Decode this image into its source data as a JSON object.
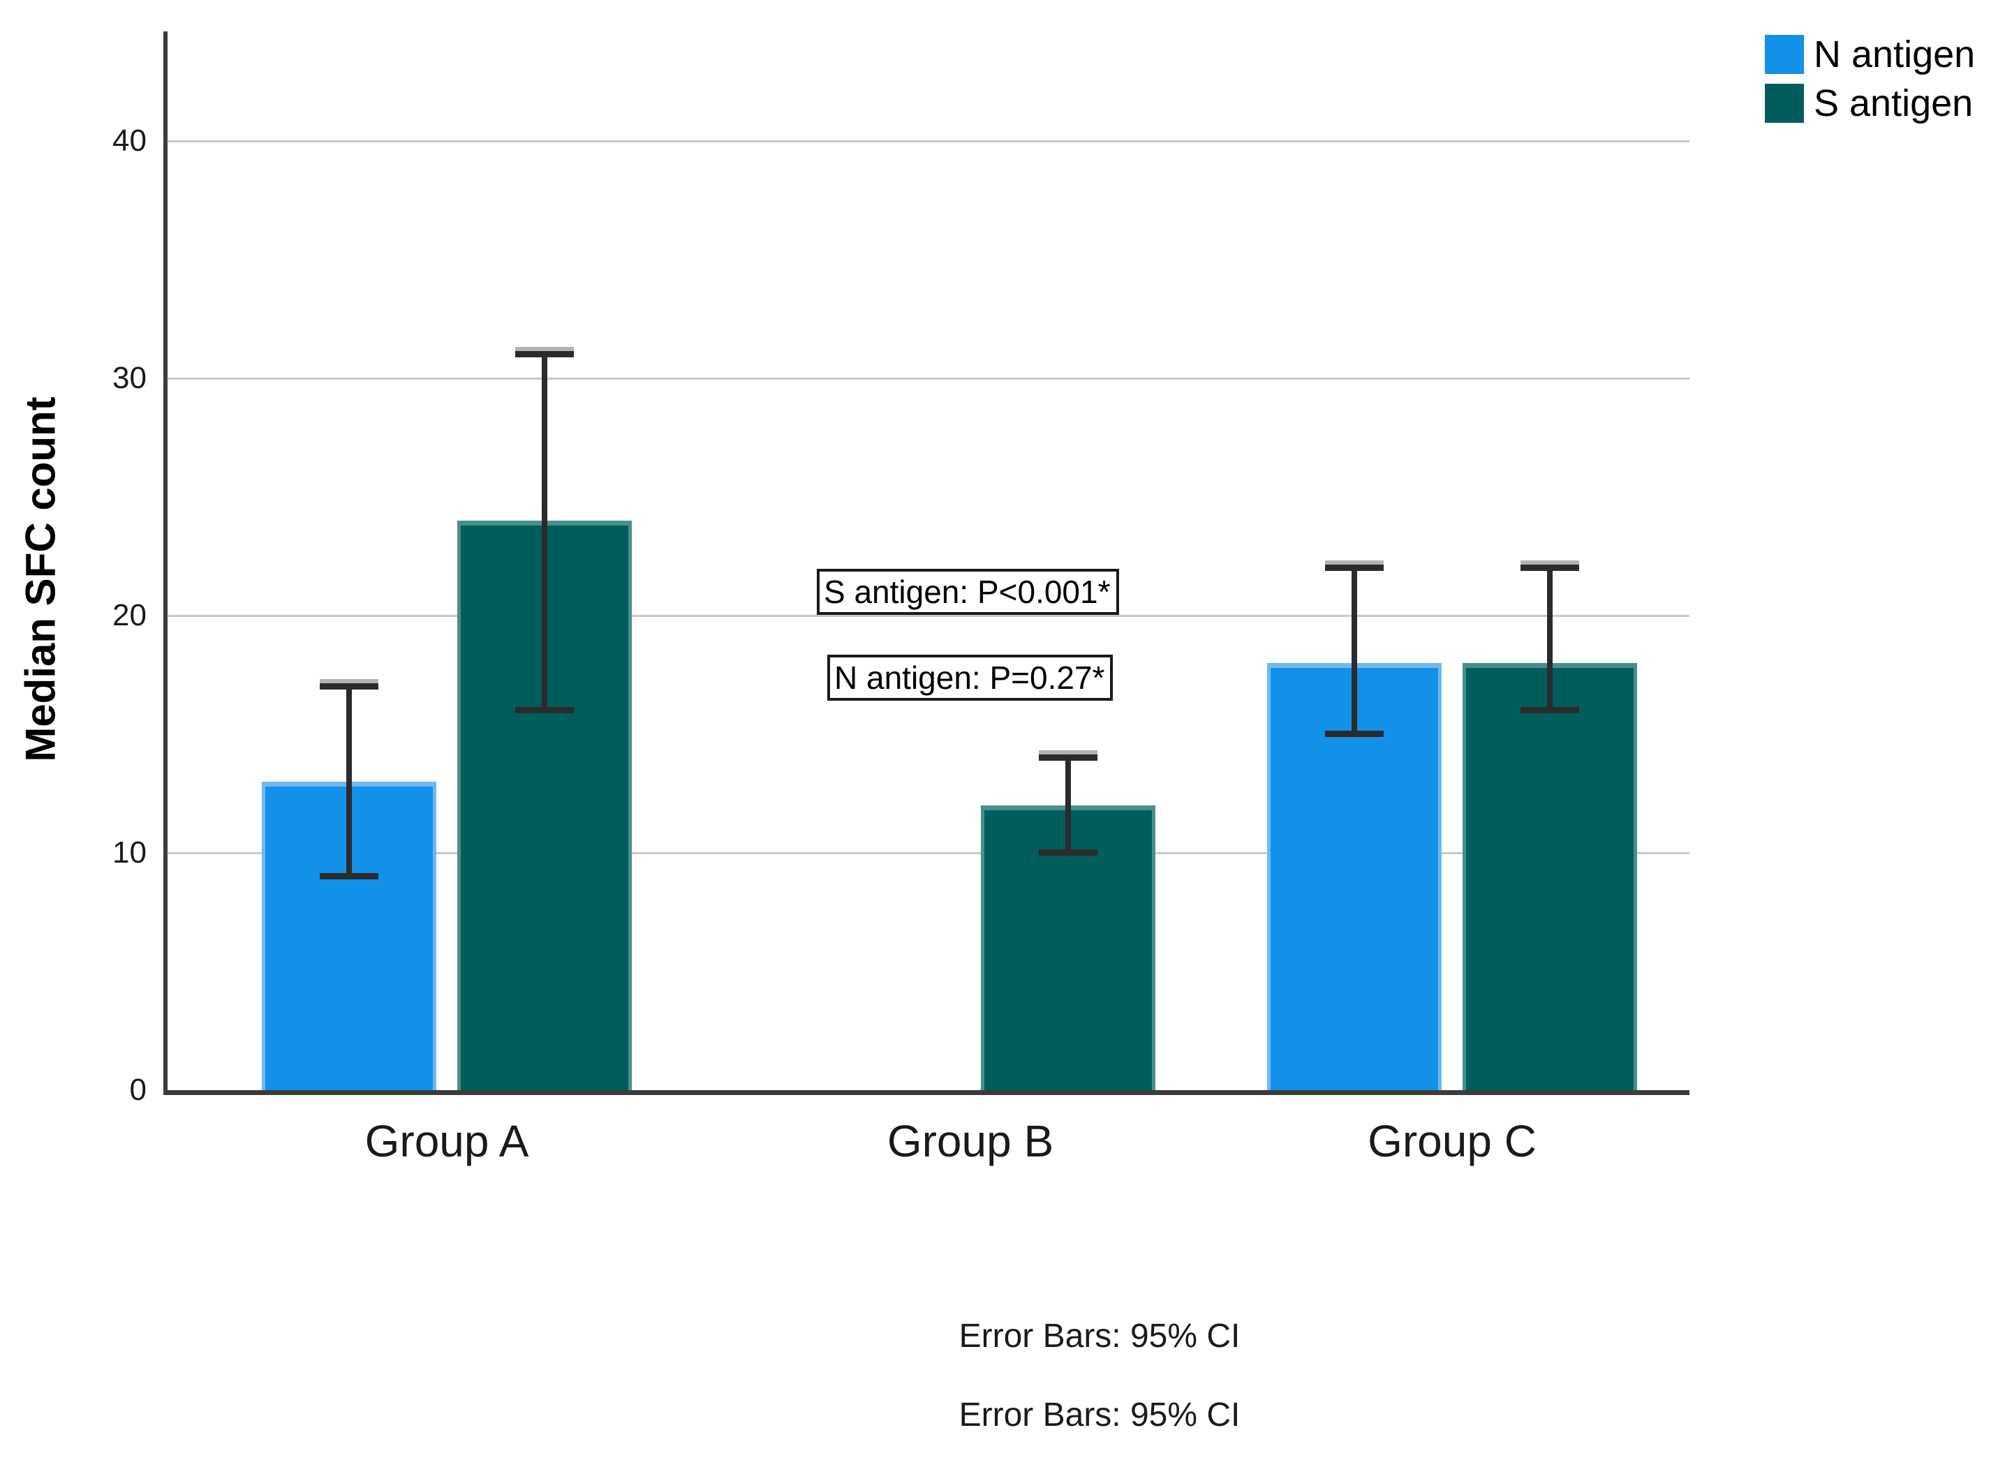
{
  "chart_data": {
    "type": "bar",
    "title": "",
    "ylabel": "Median SFC count",
    "xlabel": "",
    "categories": [
      "Group A",
      "Group B",
      "Group C"
    ],
    "series": [
      {
        "name": "N antigen",
        "color": "#1191E8",
        "edge_color": "#6FB9EF",
        "values": [
          13,
          null,
          18
        ],
        "ci_low": [
          9,
          null,
          15
        ],
        "ci_high": [
          17,
          null,
          22
        ]
      },
      {
        "name": "S antigen",
        "color": "#005D5B",
        "edge_color": "#48908B",
        "values": [
          24,
          12,
          18
        ],
        "ci_low": [
          16,
          10,
          16
        ],
        "ci_high": [
          31,
          14,
          22
        ]
      }
    ],
    "yticks": [
      0,
      10,
      20,
      30,
      40
    ],
    "ylim": [
      0,
      44.6
    ],
    "grid": "horizontal",
    "gridline_color": "#C9C9C9",
    "axis_color": "#3B3B3B",
    "error_bar_color": "#2B2B2B",
    "legend_position": "top-right",
    "error_bars_note": "Error Bars: 95% CI",
    "annotations": [
      {
        "text": "S antigen: P<0.001*"
      },
      {
        "text": "N antigen: P=0.27*"
      }
    ]
  },
  "axes": {
    "y_title": "Median SFC count",
    "y_ticks": [
      "0",
      "10",
      "20",
      "30",
      "40"
    ],
    "x_ticks": [
      "Group A",
      "Group B",
      "Group C"
    ]
  },
  "legend": {
    "items": [
      {
        "label": "N antigen",
        "color": "#1191E8"
      },
      {
        "label": "S antigen",
        "color": "#005D5B"
      }
    ]
  },
  "annotations": {
    "s": "S antigen: P<0.001*",
    "n": "N antigen: P=0.27*"
  },
  "captions": {
    "line1": "Error Bars: 95% CI",
    "line2": "Error Bars: 95% CI"
  }
}
